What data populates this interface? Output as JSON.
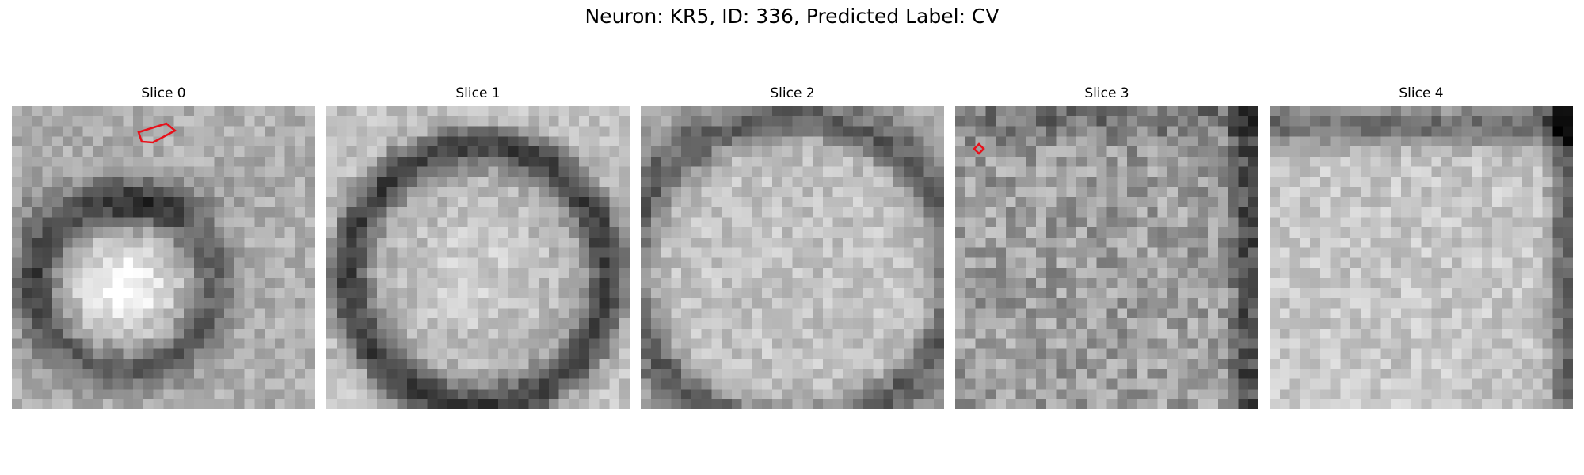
{
  "title": "Neuron: KR5, ID: 336, Predicted Label: CV",
  "slices": [
    {
      "title": "Slice 0",
      "kind": "ring-small",
      "annotation": "polygon"
    },
    {
      "title": "Slice 1",
      "kind": "ring-round",
      "annotation": "none"
    },
    {
      "title": "Slice 2",
      "kind": "blob-large",
      "annotation": "none"
    },
    {
      "title": "Slice 3",
      "kind": "noisy",
      "annotation": "diamond"
    },
    {
      "title": "Slice 4",
      "kind": "blob-edge",
      "annotation": "none"
    }
  ],
  "annotation_color": "#e8101a"
}
